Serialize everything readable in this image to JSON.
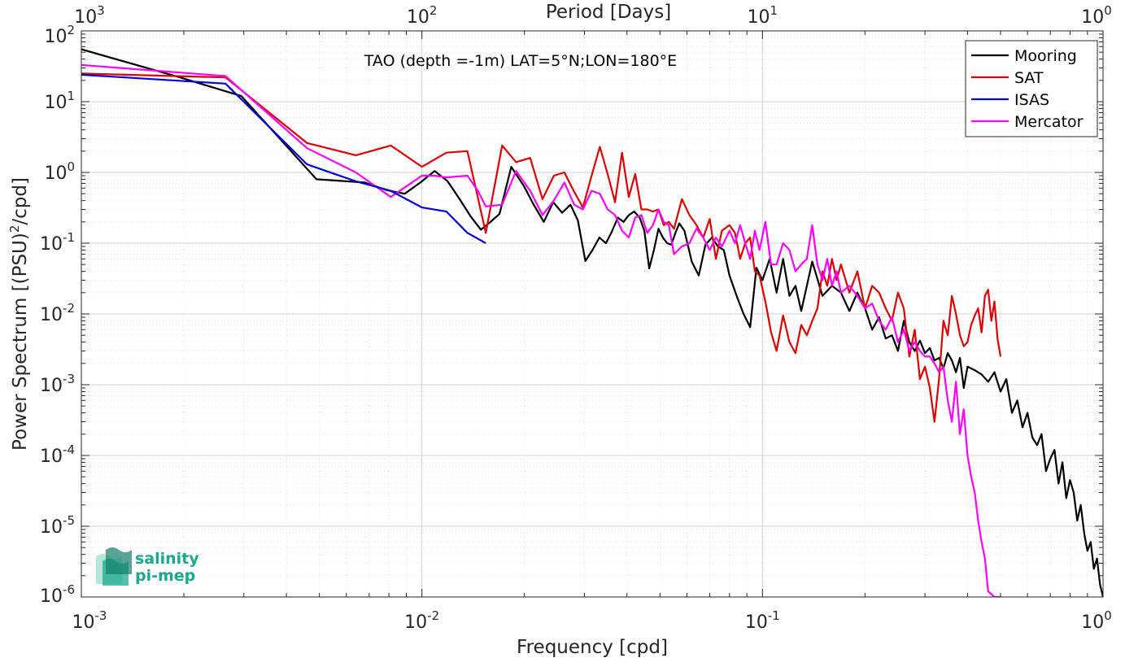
{
  "chart_data": {
    "type": "line",
    "title": "",
    "annotation": "TAO (depth =-1m) LAT=5°N;LON=180°E",
    "xlabel": "Frequency [cpd]",
    "ylabel": "Power Spectrum [(PSU)²/cpd]",
    "top_xlabel": "Period [Days]",
    "x_scale": "log",
    "y_scale": "log",
    "xlim": [
      0.001,
      1
    ],
    "ylim": [
      1e-06,
      100
    ],
    "x_ticks": [
      0.001,
      0.01,
      0.1,
      1
    ],
    "x_tick_labels": [
      {
        "base": "10",
        "exp": "-3"
      },
      {
        "base": "10",
        "exp": "-2"
      },
      {
        "base": "10",
        "exp": "-1"
      },
      {
        "base": "10",
        "exp": "0"
      }
    ],
    "y_ticks": [
      1e-06,
      1e-05,
      0.0001,
      0.001,
      0.01,
      0.1,
      1,
      10,
      100
    ],
    "y_tick_labels": [
      {
        "base": "10",
        "exp": "-6"
      },
      {
        "base": "10",
        "exp": "-5"
      },
      {
        "base": "10",
        "exp": "-4"
      },
      {
        "base": "10",
        "exp": "-3"
      },
      {
        "base": "10",
        "exp": "-2"
      },
      {
        "base": "10",
        "exp": "-1"
      },
      {
        "base": "10",
        "exp": "0"
      },
      {
        "base": "10",
        "exp": "1"
      },
      {
        "base": "10",
        "exp": "2"
      }
    ],
    "top_x_tick_labels": [
      {
        "base": "10",
        "exp": "3"
      },
      {
        "base": "10",
        "exp": "2"
      },
      {
        "base": "10",
        "exp": "1"
      },
      {
        "base": "10",
        "exp": "0"
      }
    ],
    "grid": true,
    "legend_position": "top-right",
    "series": [
      {
        "name": "Mooring",
        "color": "#000000",
        "x": [
          0.001,
          0.00195,
          0.00295,
          0.0049,
          0.0068,
          0.0079,
          0.0089,
          0.0099,
          0.0109,
          0.0119,
          0.0129,
          0.0139,
          0.0149,
          0.0159,
          0.0169,
          0.0183,
          0.0199,
          0.0213,
          0.0228,
          0.0243,
          0.0258,
          0.0273,
          0.0287,
          0.0302,
          0.0317,
          0.0332,
          0.0347,
          0.0361,
          0.0376,
          0.0391,
          0.0405,
          0.042,
          0.0436,
          0.045,
          0.0465,
          0.048,
          0.0495,
          0.051,
          0.0525,
          0.054,
          0.0555,
          0.057,
          0.059,
          0.062,
          0.065,
          0.068,
          0.071,
          0.074,
          0.077,
          0.08,
          0.084,
          0.088,
          0.092,
          0.096,
          0.1,
          0.105,
          0.11,
          0.115,
          0.12,
          0.125,
          0.13,
          0.14,
          0.15,
          0.16,
          0.17,
          0.18,
          0.19,
          0.2,
          0.21,
          0.22,
          0.23,
          0.24,
          0.25,
          0.26,
          0.27,
          0.28,
          0.29,
          0.3,
          0.31,
          0.32,
          0.33,
          0.34,
          0.35,
          0.36,
          0.37,
          0.38,
          0.39,
          0.4,
          0.42,
          0.44,
          0.46,
          0.48,
          0.5,
          0.52,
          0.54,
          0.56,
          0.58,
          0.6,
          0.62,
          0.64,
          0.66,
          0.68,
          0.7,
          0.72,
          0.74,
          0.76,
          0.78,
          0.8,
          0.82,
          0.84,
          0.86,
          0.88,
          0.9,
          0.92,
          0.94,
          0.96,
          0.98,
          1.0
        ],
        "y": [
          55,
          22,
          12,
          0.8,
          0.72,
          0.56,
          0.5,
          0.72,
          1.05,
          0.75,
          0.42,
          0.24,
          0.155,
          0.2,
          0.26,
          1.2,
          0.65,
          0.35,
          0.2,
          0.38,
          0.27,
          0.35,
          0.21,
          0.056,
          0.08,
          0.12,
          0.1,
          0.145,
          0.23,
          0.2,
          0.25,
          0.28,
          0.23,
          0.15,
          0.044,
          0.08,
          0.16,
          0.12,
          0.1,
          0.095,
          0.14,
          0.19,
          0.15,
          0.055,
          0.035,
          0.095,
          0.12,
          0.09,
          0.08,
          0.035,
          0.018,
          0.01,
          0.0065,
          0.045,
          0.03,
          0.06,
          0.02,
          0.06,
          0.018,
          0.025,
          0.011,
          0.055,
          0.018,
          0.025,
          0.02,
          0.011,
          0.02,
          0.012,
          0.006,
          0.009,
          0.0045,
          0.005,
          0.003,
          0.008,
          0.004,
          0.003,
          0.0042,
          0.0028,
          0.0033,
          0.0022,
          0.0024,
          0.0017,
          0.0028,
          0.0022,
          0.0015,
          0.0024,
          0.0009,
          0.0018,
          0.0016,
          0.0014,
          0.0011,
          0.0015,
          0.0008,
          0.0012,
          0.0004,
          0.0006,
          0.00025,
          0.0004,
          0.00018,
          0.00014,
          0.0002,
          6e-05,
          9e-05,
          0.00012,
          4e-05,
          8e-05,
          2.5e-05,
          4.5e-05,
          3e-05,
          1.2e-05,
          2e-05,
          8e-06,
          4.5e-06,
          6e-06,
          2.5e-06,
          3.5e-06,
          1.5e-06,
          1e-06
        ]
      },
      {
        "name": "SAT",
        "color": "#e00000",
        "x": [
          0.001,
          0.00265,
          0.0046,
          0.0064,
          0.0081,
          0.01,
          0.0118,
          0.0136,
          0.0154,
          0.0172,
          0.0189,
          0.0208,
          0.0226,
          0.0244,
          0.0262,
          0.0279,
          0.0297,
          0.0315,
          0.0333,
          0.0351,
          0.0369,
          0.0387,
          0.0405,
          0.0423,
          0.0441,
          0.0459,
          0.0477,
          0.0495,
          0.0513,
          0.0531,
          0.055,
          0.058,
          0.061,
          0.064,
          0.067,
          0.07,
          0.073,
          0.076,
          0.08,
          0.083,
          0.086,
          0.089,
          0.092,
          0.095,
          0.098,
          0.102,
          0.106,
          0.11,
          0.115,
          0.12,
          0.125,
          0.13,
          0.135,
          0.14,
          0.145,
          0.15,
          0.155,
          0.16,
          0.165,
          0.17,
          0.18,
          0.19,
          0.2,
          0.21,
          0.22,
          0.23,
          0.24,
          0.25,
          0.26,
          0.27,
          0.28,
          0.29,
          0.3,
          0.31,
          0.32,
          0.33,
          0.34,
          0.35,
          0.36,
          0.37,
          0.38,
          0.39,
          0.4,
          0.41,
          0.42,
          0.43,
          0.44,
          0.45,
          0.46,
          0.47,
          0.48,
          0.49,
          0.5
        ],
        "y": [
          25,
          22,
          2.6,
          1.75,
          2.4,
          1.2,
          1.9,
          2.0,
          0.14,
          2.4,
          1.4,
          1.6,
          0.42,
          0.9,
          1.0,
          0.55,
          0.32,
          0.9,
          2.3,
          0.95,
          0.38,
          1.9,
          0.45,
          0.95,
          0.3,
          0.3,
          0.28,
          0.3,
          0.18,
          0.2,
          0.16,
          0.42,
          0.25,
          0.18,
          0.12,
          0.22,
          0.06,
          0.15,
          0.18,
          0.14,
          0.06,
          0.1,
          0.12,
          0.04,
          0.035,
          0.015,
          0.0055,
          0.003,
          0.0095,
          0.004,
          0.0028,
          0.007,
          0.005,
          0.008,
          0.012,
          0.04,
          0.025,
          0.06,
          0.03,
          0.05,
          0.02,
          0.04,
          0.012,
          0.025,
          0.02,
          0.012,
          0.008,
          0.02,
          0.012,
          0.0025,
          0.006,
          0.0012,
          0.0018,
          0.0009,
          0.0003,
          0.0012,
          0.008,
          0.005,
          0.018,
          0.01,
          0.005,
          0.0035,
          0.004,
          0.007,
          0.0095,
          0.012,
          0.0055,
          0.018,
          0.022,
          0.008,
          0.015,
          0.0045,
          0.0025
        ]
      },
      {
        "name": "ISAS",
        "color": "#0000e0",
        "x": [
          0.001,
          0.00265,
          0.0046,
          0.0064,
          0.0081,
          0.01,
          0.0118,
          0.0136,
          0.0154
        ],
        "y": [
          24,
          18,
          1.3,
          0.75,
          0.55,
          0.32,
          0.28,
          0.14,
          0.1
        ]
      },
      {
        "name": "Mercator",
        "color": "#ff00ff",
        "x": [
          0.001,
          0.00265,
          0.0046,
          0.0064,
          0.0081,
          0.01,
          0.0109,
          0.0118,
          0.0136,
          0.0146,
          0.0154,
          0.0172,
          0.0189,
          0.0208,
          0.0226,
          0.0244,
          0.0262,
          0.028,
          0.0297,
          0.0315,
          0.0333,
          0.0351,
          0.0369,
          0.0387,
          0.0405,
          0.0423,
          0.0441,
          0.0459,
          0.0477,
          0.0495,
          0.0513,
          0.0531,
          0.055,
          0.058,
          0.061,
          0.064,
          0.067,
          0.07,
          0.073,
          0.076,
          0.08,
          0.083,
          0.086,
          0.089,
          0.092,
          0.095,
          0.098,
          0.102,
          0.106,
          0.11,
          0.115,
          0.12,
          0.125,
          0.13,
          0.135,
          0.14,
          0.145,
          0.15,
          0.155,
          0.16,
          0.165,
          0.17,
          0.18,
          0.19,
          0.2,
          0.21,
          0.22,
          0.23,
          0.24,
          0.25,
          0.26,
          0.27,
          0.28,
          0.29,
          0.3,
          0.31,
          0.32,
          0.33,
          0.34,
          0.35,
          0.36,
          0.37,
          0.38,
          0.39,
          0.4,
          0.41,
          0.42,
          0.43,
          0.44,
          0.45,
          0.46,
          0.47,
          0.48,
          0.49,
          0.5
        ],
        "y": [
          33,
          23,
          2.2,
          1.0,
          0.45,
          0.9,
          0.9,
          0.85,
          0.9,
          0.55,
          0.33,
          0.35,
          1.05,
          0.55,
          0.25,
          0.4,
          0.72,
          0.35,
          0.3,
          0.55,
          0.5,
          0.3,
          0.25,
          0.15,
          0.12,
          0.23,
          0.25,
          0.14,
          0.18,
          0.3,
          0.2,
          0.18,
          0.07,
          0.09,
          0.1,
          0.16,
          0.12,
          0.08,
          0.12,
          0.09,
          0.15,
          0.1,
          0.18,
          0.1,
          0.06,
          0.15,
          0.08,
          0.2,
          0.05,
          0.05,
          0.1,
          0.08,
          0.04,
          0.05,
          0.06,
          0.18,
          0.05,
          0.03,
          0.06,
          0.025,
          0.04,
          0.02,
          0.025,
          0.018,
          0.012,
          0.014,
          0.008,
          0.006,
          0.009,
          0.004,
          0.006,
          0.003,
          0.004,
          0.003,
          0.0025,
          0.0025,
          0.002,
          0.0015,
          0.0018,
          0.0006,
          0.0003,
          0.0011,
          0.0002,
          0.00045,
          0.0001,
          5e-05,
          3e-05,
          1.2e-05,
          6e-06,
          3.5e-06,
          1.2e-06,
          1.1e-06,
          1e-06,
          1e-06,
          1e-06
        ]
      }
    ]
  },
  "logo": {
    "line1": "salinity",
    "line2": "pi-mep"
  }
}
